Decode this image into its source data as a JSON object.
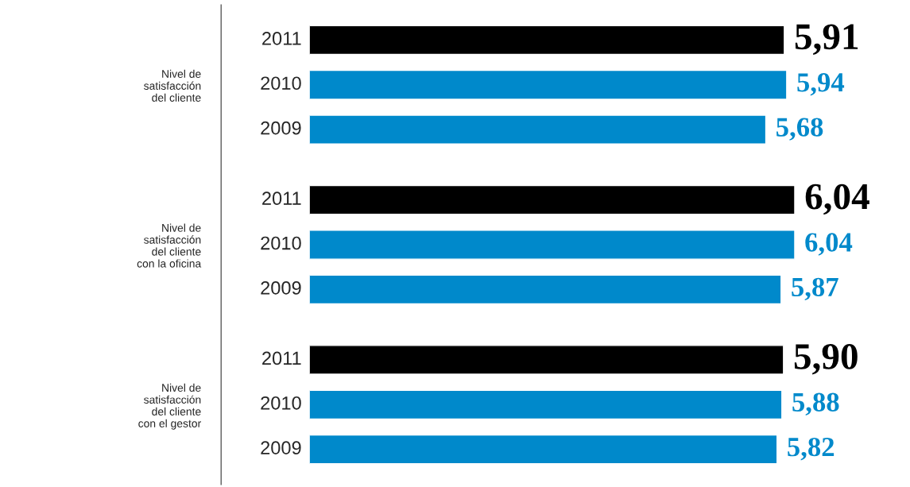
{
  "chart_data": {
    "type": "bar",
    "orientation": "horizontal",
    "categories": [
      "Nivel de\nsatisfacción\ndel cliente",
      "Nivel de\nsatisfacción\ndel cliente\ncon la oficina",
      "Nivel de\nsatisfacción\ndel cliente\ncon el gestor"
    ],
    "series": [
      {
        "name": "2011",
        "color": "#000000",
        "values": [
          5.91,
          6.04,
          5.9
        ],
        "value_labels": [
          "5,91",
          "6,04",
          "5,90"
        ]
      },
      {
        "name": "2010",
        "color": "#0089cb",
        "values": [
          5.94,
          6.04,
          5.88
        ],
        "value_labels": [
          "5,94",
          "6,04",
          "5,88"
        ]
      },
      {
        "name": "2009",
        "color": "#0089cb",
        "values": [
          5.68,
          5.87,
          5.82
        ],
        "value_labels": [
          "5,68",
          "5,87",
          "5,82"
        ]
      }
    ],
    "tick_labels": "y",
    "grid": false,
    "legend": false
  }
}
